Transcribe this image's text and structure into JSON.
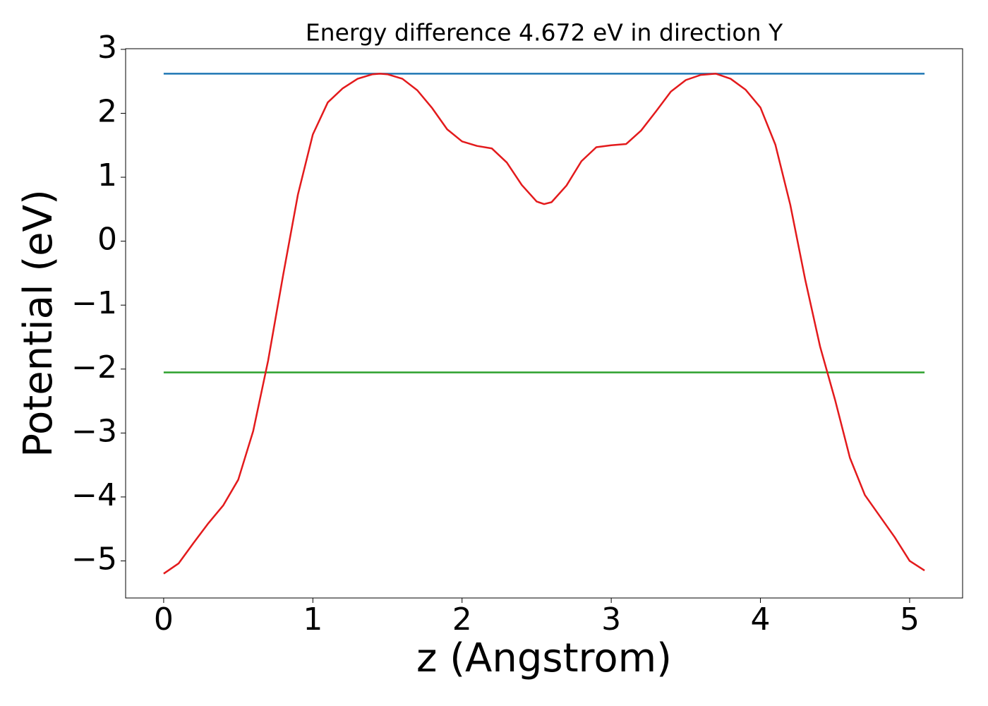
{
  "chart_data": {
    "type": "line",
    "title": "Energy difference 4.672 eV in direction Y",
    "x_label": "z (Angstrom)",
    "y_label": "Potential (eV)",
    "xlim": [
      -0.255,
      5.355
    ],
    "ylim": [
      -5.58,
      3.01
    ],
    "xticks": [
      0,
      1,
      2,
      3,
      4,
      5
    ],
    "yticks": [
      {
        "value": -5,
        "label": "−5"
      },
      {
        "value": -4,
        "label": "−4"
      },
      {
        "value": -3,
        "label": "−3"
      },
      {
        "value": -2,
        "label": "−2"
      },
      {
        "value": -1,
        "label": "−1"
      },
      0,
      1,
      2,
      3
    ],
    "series": [
      {
        "color": "#1f77b4",
        "x": [
          0,
          5.1
        ],
        "values": [
          2.62,
          2.62
        ]
      },
      {
        "color": "#2ca02c",
        "x": [
          0,
          5.1
        ],
        "values": [
          -2.052,
          -2.052
        ]
      },
      {
        "color": "#e31a1c",
        "x": [
          0,
          0.1,
          0.2,
          0.3,
          0.4,
          0.5,
          0.6,
          0.7,
          0.8,
          0.9,
          1.0,
          1.1,
          1.2,
          1.3,
          1.4,
          1.45,
          1.5,
          1.6,
          1.7,
          1.8,
          1.9,
          2.0,
          2.1,
          2.2,
          2.3,
          2.4,
          2.5,
          2.55,
          2.6,
          2.7,
          2.8,
          2.9,
          3.0,
          3.1,
          3.2,
          3.3,
          3.4,
          3.5,
          3.6,
          3.7,
          3.8,
          3.9,
          4.0,
          4.1,
          4.2,
          4.3,
          4.4,
          4.5,
          4.6,
          4.7,
          4.8,
          4.9,
          5.0,
          5.1
        ],
        "values": [
          -5.2,
          -5.04,
          -4.72,
          -4.41,
          -4.13,
          -3.73,
          -2.97,
          -1.87,
          -0.54,
          0.73,
          1.67,
          2.17,
          2.39,
          2.54,
          2.61,
          2.62,
          2.61,
          2.54,
          2.36,
          2.08,
          1.75,
          1.56,
          1.49,
          1.45,
          1.23,
          0.88,
          0.62,
          0.58,
          0.61,
          0.87,
          1.25,
          1.47,
          1.5,
          1.52,
          1.73,
          2.03,
          2.34,
          2.52,
          2.6,
          2.62,
          2.54,
          2.37,
          2.09,
          1.51,
          0.57,
          -0.6,
          -1.65,
          -2.48,
          -3.39,
          -3.97,
          -4.3,
          -4.63,
          -5.0,
          -5.15
        ]
      }
    ]
  }
}
